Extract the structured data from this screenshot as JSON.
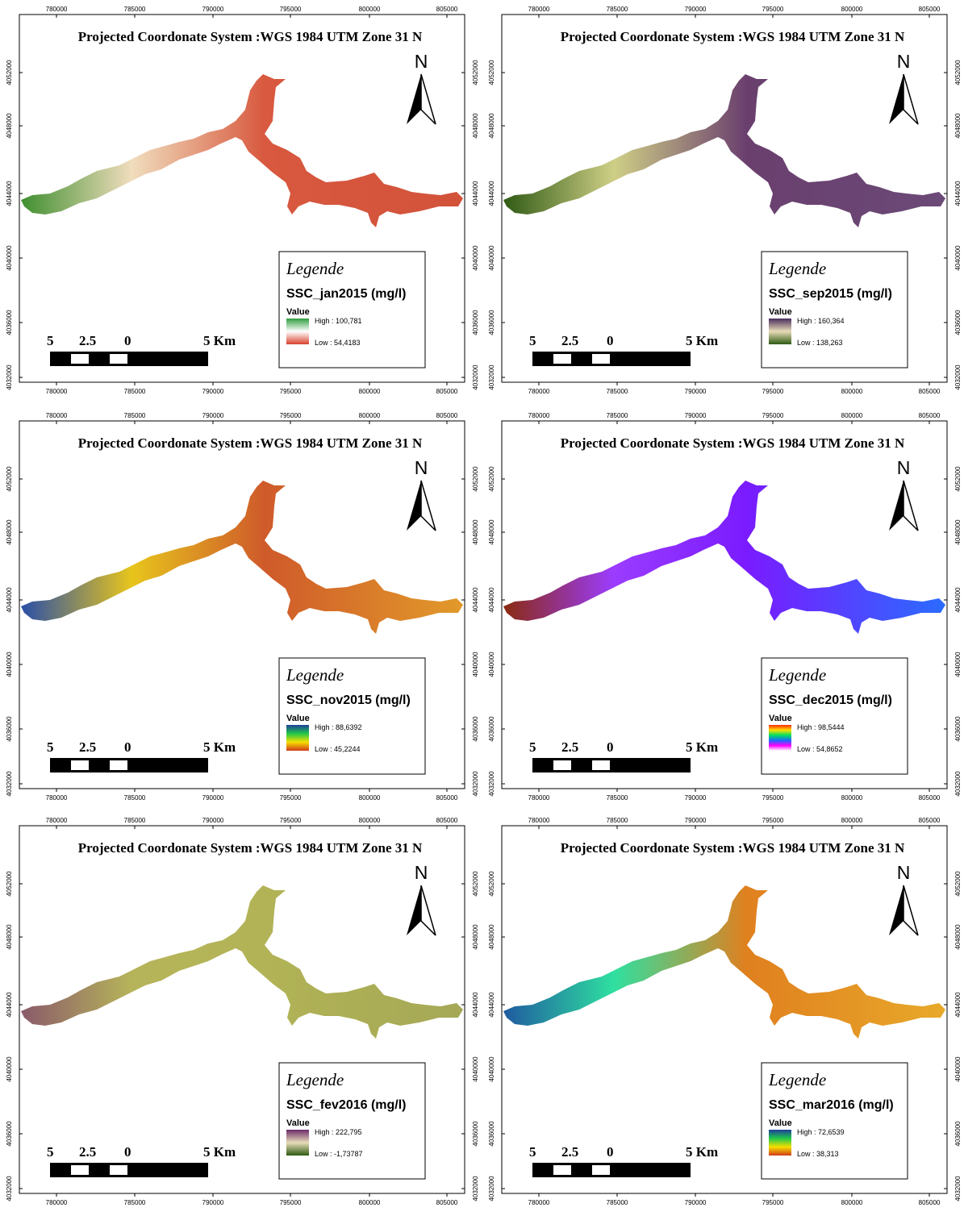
{
  "maps": [
    {
      "title": "Projected Coordonate System :WGS 1984 UTM Zone 31 N",
      "legend": {
        "heading": "Legende",
        "layer": "SSC_jan2015 (mg/l)",
        "value_label": "Value",
        "high": "High : 100,781",
        "low": "Low : 54,4183",
        "ramp": [
          "#2f9e3f",
          "#ffffff",
          "#d8412f"
        ]
      },
      "fill": [
        "#3f8f2f",
        "#f0ddbd",
        "#d8593f",
        "#d2523a"
      ],
      "north": "N",
      "scale_labels": [
        "5",
        "2.5",
        "0",
        "5 Km"
      ]
    },
    {
      "title": "Projected Coordonate System :WGS 1984 UTM Zone 31 N",
      "legend": {
        "heading": "Legende",
        "layer": "SSC_sep2015 (mg/l)",
        "value_label": "Value",
        "high": "High : 160,364",
        "low": "Low : 138,263",
        "ramp": [
          "#4a2d5c",
          "#e8dcb8",
          "#2e5a12"
        ]
      },
      "fill": [
        "#2f5a14",
        "#cfcf86",
        "#6a3f6e",
        "#6b4a78"
      ],
      "north": "N",
      "scale_labels": [
        "5",
        "2.5",
        "0",
        "5 Km"
      ]
    },
    {
      "title": "Projected Coordonate System :WGS 1984 UTM Zone 31 N",
      "legend": {
        "heading": "Legende",
        "layer": "SSC_nov2015 (mg/l)",
        "value_label": "Value",
        "high": "High : 88,6392",
        "low": "Low : 45,2244",
        "ramp": [
          "#1f3f9c",
          "#1fc84a",
          "#f5e000",
          "#d23a1a"
        ]
      },
      "fill": [
        "#2a4fa8",
        "#e7c51c",
        "#cf5a2a",
        "#e29a2a"
      ],
      "north": "N",
      "scale_labels": [
        "5",
        "2.5",
        "0",
        "5 Km"
      ]
    },
    {
      "title": "Projected Coordonate System :WGS 1984 UTM Zone 31 N",
      "legend": {
        "heading": "Legende",
        "layer": "SSC_dec2015 (mg/l)",
        "value_label": "Value",
        "high": "High : 98,5444",
        "low": "Low : 54,8652",
        "ramp": [
          "#ff2a00",
          "#ffe000",
          "#00e060",
          "#1a6aff",
          "#ff00ff",
          "#ffffff"
        ]
      },
      "fill": [
        "#8a2a10",
        "#9b3cff",
        "#7a1bff",
        "#2a6cff"
      ],
      "north": "N",
      "scale_labels": [
        "5",
        "2.5",
        "0",
        "5 Km"
      ]
    },
    {
      "title": "Projected Coordonate System :WGS 1984 UTM Zone 31 N",
      "legend": {
        "heading": "Legende",
        "layer": "SSC_fev2016 (mg/l)",
        "value_label": "Value",
        "high": "High : 222,795",
        "low": "Low : -1,73787",
        "ramp": [
          "#6a2a6a",
          "#e8dcb8",
          "#2e5a12"
        ]
      },
      "fill": [
        "#8a5a6a",
        "#b6b45a",
        "#b2b356",
        "#a5a856"
      ],
      "north": "N",
      "scale_labels": [
        "5",
        "2.5",
        "0",
        "5 Km"
      ]
    },
    {
      "title": "Projected Coordonate System :WGS 1984 UTM Zone 31 N",
      "legend": {
        "heading": "Legende",
        "layer": "SSC_mar2016 (mg/l)",
        "value_label": "Value",
        "high": "High : 72,6539",
        "low": "Low : 38,313",
        "ramp": [
          "#1f3f9c",
          "#1fc84a",
          "#f5e000",
          "#d23a1a"
        ]
      },
      "fill": [
        "#1f5aa0",
        "#2fe0a0",
        "#e0801f",
        "#e8a92a"
      ],
      "north": "N",
      "scale_labels": [
        "5",
        "2.5",
        "0",
        "5 Km"
      ]
    }
  ],
  "x_ticks": [
    "780000",
    "785000",
    "790000",
    "795000",
    "800000",
    "805000"
  ],
  "y_ticks": [
    "4052000",
    "4048000",
    "4044000",
    "4040000",
    "4036000",
    "4032000"
  ]
}
